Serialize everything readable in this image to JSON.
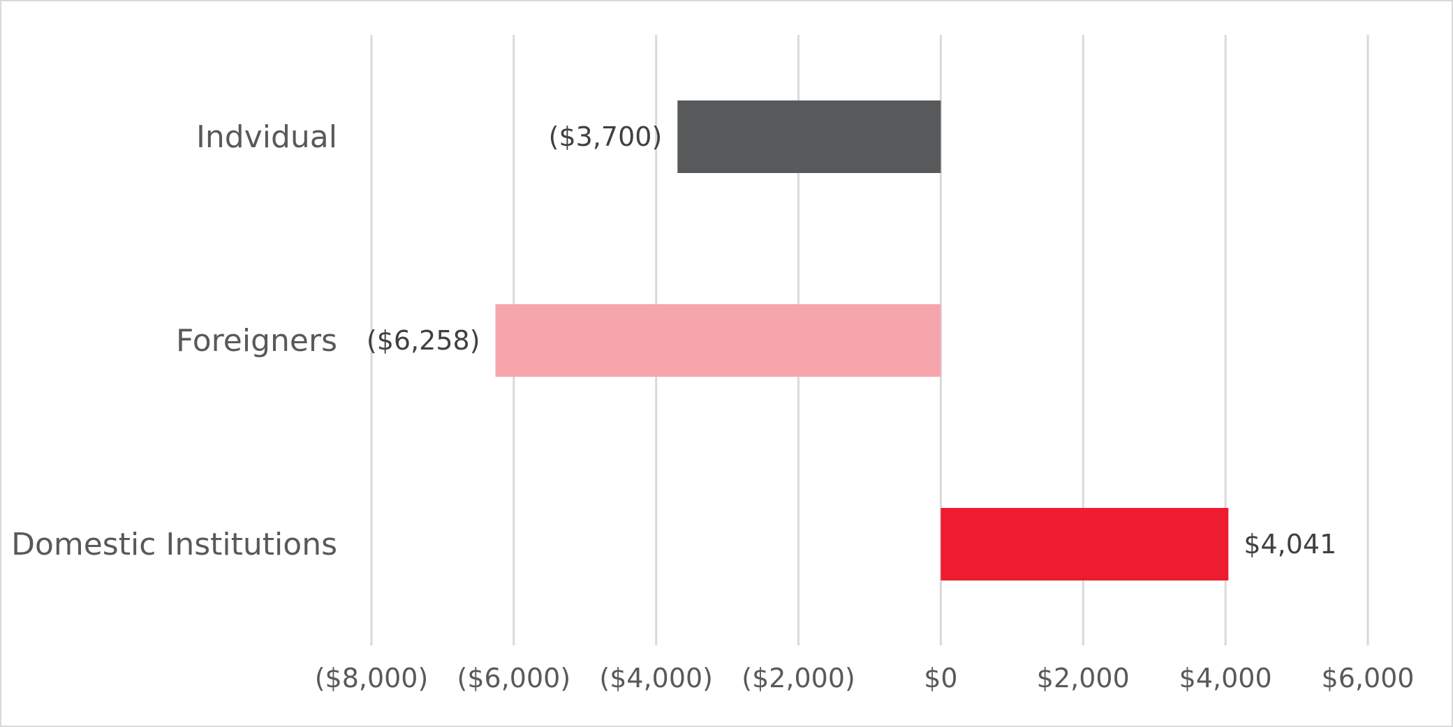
{
  "chart_data": {
    "type": "bar",
    "orientation": "horizontal",
    "title": "",
    "xlabel": "",
    "ylabel": "",
    "categories": [
      "Indvidual",
      "Foreigners",
      "Domestic Institutions"
    ],
    "values": [
      -3700,
      -6258,
      4041
    ],
    "data_labels": [
      "($3,700)",
      "($6,258)",
      "$4,041"
    ],
    "colors": [
      "#58595b",
      "#f6a5ac",
      "#ed1c2e"
    ],
    "xlim": [
      -8000,
      6000
    ],
    "x_ticks": [
      -8000,
      -6000,
      -4000,
      -2000,
      0,
      2000,
      4000,
      6000
    ],
    "x_tick_labels": [
      "($8,000)",
      "($6,000)",
      "($4,000)",
      "($2,000)",
      "$0",
      "$2,000",
      "$4,000",
      "$6,000"
    ],
    "grid": true,
    "legend": "none"
  }
}
